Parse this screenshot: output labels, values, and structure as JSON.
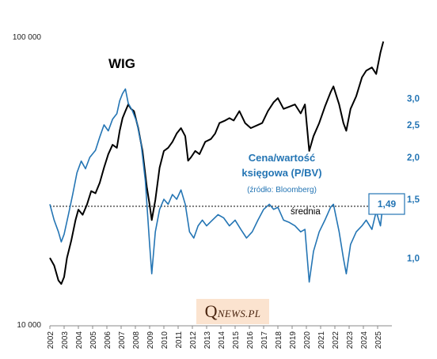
{
  "chart_data": {
    "type": "line",
    "title": "WIG",
    "secondary_title_line1": "Cena/wartość",
    "secondary_title_line2": "księgowa (P/BV)",
    "source": "(źródło: Bloomberg)",
    "average_label": "średnia",
    "average_value": 1.43,
    "last_pbv_label": "1,49",
    "left_axis": {
      "scale": "log",
      "range": [
        10000,
        100000
      ],
      "tick_labels": [
        "10 000",
        "100 000"
      ],
      "tick_values": [
        10000,
        100000
      ]
    },
    "right_axis": {
      "scale": "log",
      "range": [
        0.6364,
        4.59
      ],
      "tick_labels": [
        "1,0",
        "1,5",
        "2,0",
        "2,5",
        "3,0"
      ],
      "tick_values": [
        1.0,
        1.5,
        2.0,
        2.5,
        3.0
      ]
    },
    "x_axis": {
      "range": [
        2002.0,
        2026.0
      ],
      "tick_labels": [
        "2002",
        "2003",
        "2004",
        "2005",
        "2006",
        "2007",
        "2008",
        "2009",
        "2010",
        "2011",
        "2012",
        "2013",
        "2014",
        "2015",
        "2016",
        "2017",
        "2018",
        "2019",
        "2020",
        "2021",
        "2022",
        "2023",
        "2024",
        "2025"
      ]
    },
    "grid": false,
    "series": [
      {
        "name": "WIG",
        "color": "#000000",
        "axis": "left",
        "x": [
          2002.0,
          2002.3,
          2002.6,
          2002.8,
          2003.0,
          2003.2,
          2003.5,
          2003.8,
          2004.0,
          2004.3,
          2004.6,
          2004.9,
          2005.2,
          2005.5,
          2005.8,
          2006.1,
          2006.4,
          2006.7,
          2006.9,
          2007.1,
          2007.3,
          2007.5,
          2007.7,
          2007.9,
          2008.2,
          2008.5,
          2008.8,
          2009.0,
          2009.15,
          2009.4,
          2009.7,
          2010.0,
          2010.3,
          2010.6,
          2010.9,
          2011.2,
          2011.5,
          2011.7,
          2011.9,
          2012.2,
          2012.5,
          2012.9,
          2013.3,
          2013.6,
          2013.9,
          2014.3,
          2014.6,
          2014.9,
          2015.3,
          2015.7,
          2016.1,
          2016.5,
          2016.9,
          2017.3,
          2017.7,
          2018.0,
          2018.4,
          2018.8,
          2019.2,
          2019.6,
          2019.9,
          2020.2,
          2020.5,
          2020.9,
          2021.3,
          2021.7,
          2021.9,
          2022.3,
          2022.6,
          2022.8,
          2023.1,
          2023.5,
          2023.9,
          2024.2,
          2024.6,
          2024.9,
          2025.2,
          2025.4
        ],
        "y": [
          17000,
          16000,
          14200,
          13800,
          14600,
          17000,
          19500,
          23000,
          25000,
          24000,
          26000,
          29000,
          28500,
          31000,
          35000,
          39000,
          42000,
          41000,
          47000,
          52000,
          55000,
          58000,
          56000,
          55000,
          48000,
          40000,
          30000,
          26000,
          23000,
          27000,
          35000,
          40000,
          41000,
          43000,
          46000,
          48000,
          45000,
          37000,
          38000,
          40000,
          39000,
          43000,
          44000,
          46000,
          50000,
          51000,
          52000,
          51000,
          55000,
          50000,
          48000,
          49000,
          50000,
          55000,
          59000,
          61000,
          56000,
          57000,
          58000,
          54000,
          58000,
          40000,
          45000,
          50000,
          57000,
          64000,
          67000,
          58000,
          50000,
          47000,
          56000,
          62000,
          72000,
          76000,
          78000,
          74000,
          88000,
          96000
        ]
      },
      {
        "name": "P/BV",
        "color": "#2475b4",
        "axis": "right",
        "x": [
          2002.0,
          2002.3,
          2002.6,
          2002.8,
          2003.0,
          2003.3,
          2003.6,
          2003.9,
          2004.2,
          2004.5,
          2004.8,
          2005.2,
          2005.5,
          2005.8,
          2006.1,
          2006.4,
          2006.7,
          2006.9,
          2007.1,
          2007.3,
          2007.5,
          2007.8,
          2008.1,
          2008.4,
          2008.7,
          2009.0,
          2009.15,
          2009.4,
          2009.7,
          2010.0,
          2010.3,
          2010.6,
          2010.9,
          2011.2,
          2011.5,
          2011.8,
          2012.1,
          2012.4,
          2012.7,
          2013.0,
          2013.4,
          2013.8,
          2014.2,
          2014.6,
          2015.0,
          2015.4,
          2015.8,
          2016.2,
          2016.6,
          2017.0,
          2017.4,
          2017.7,
          2018.0,
          2018.4,
          2018.8,
          2019.2,
          2019.6,
          2019.9,
          2020.2,
          2020.5,
          2020.9,
          2021.3,
          2021.7,
          2021.9,
          2022.3,
          2022.6,
          2022.8,
          2023.1,
          2023.5,
          2023.9,
          2024.2,
          2024.6,
          2024.9,
          2025.2,
          2025.4
        ],
        "y": [
          1.45,
          1.3,
          1.2,
          1.12,
          1.18,
          1.35,
          1.55,
          1.8,
          1.95,
          1.85,
          2.0,
          2.1,
          2.3,
          2.5,
          2.4,
          2.6,
          2.7,
          2.95,
          3.1,
          3.2,
          2.9,
          2.75,
          2.55,
          2.2,
          1.7,
          1.1,
          0.9,
          1.2,
          1.4,
          1.5,
          1.45,
          1.55,
          1.5,
          1.6,
          1.45,
          1.2,
          1.15,
          1.25,
          1.3,
          1.25,
          1.3,
          1.35,
          1.32,
          1.25,
          1.3,
          1.22,
          1.15,
          1.2,
          1.3,
          1.4,
          1.45,
          1.4,
          1.42,
          1.3,
          1.28,
          1.25,
          1.2,
          1.22,
          0.85,
          1.05,
          1.2,
          1.3,
          1.42,
          1.45,
          1.2,
          1.0,
          0.9,
          1.1,
          1.2,
          1.25,
          1.3,
          1.22,
          1.38,
          1.25,
          1.49
        ]
      }
    ]
  }
}
